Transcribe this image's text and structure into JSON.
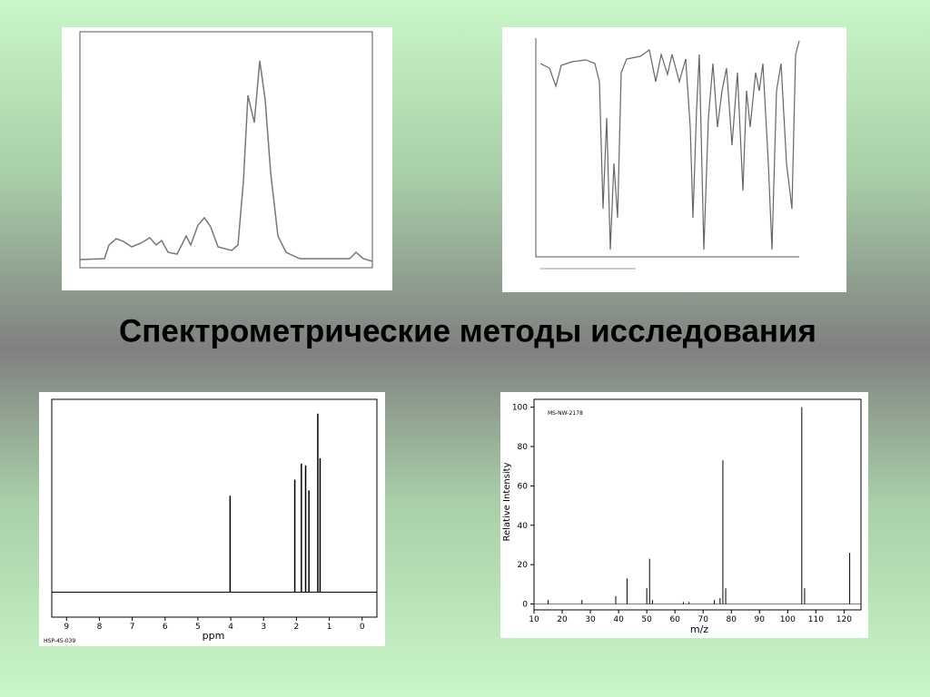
{
  "slide": {
    "title": "Спектрометрические методы исследования"
  },
  "nmr": {
    "code": "HSP-45-039",
    "xlabel": "ppm",
    "xlim": [
      9.45,
      -0.45
    ],
    "xticks": [
      9,
      8,
      7,
      6,
      5,
      4,
      3,
      2,
      1,
      0
    ],
    "ylim": [
      -14,
      108
    ],
    "peaks": [
      {
        "ppm": 4.02,
        "height": 54
      },
      {
        "ppm": 2.05,
        "height": 63
      },
      {
        "ppm": 1.85,
        "height": 72
      },
      {
        "ppm": 1.72,
        "height": 71
      },
      {
        "ppm": 1.62,
        "height": 57
      },
      {
        "ppm": 1.35,
        "height": 100
      },
      {
        "ppm": 1.28,
        "height": 75
      }
    ]
  },
  "ms": {
    "code": "MS-NW-2178",
    "xlabel": "m/z",
    "ylabel": "Relative Intensity",
    "xlim": [
      10,
      126
    ],
    "xticks": [
      10,
      20,
      30,
      40,
      50,
      60,
      70,
      80,
      90,
      100,
      110,
      120
    ],
    "ylim": [
      -3,
      104
    ],
    "yticks": [
      0,
      20,
      40,
      60,
      80,
      100
    ],
    "peaks": [
      {
        "mz": 15,
        "intensity": 2
      },
      {
        "mz": 27,
        "intensity": 2
      },
      {
        "mz": 39,
        "intensity": 4
      },
      {
        "mz": 43,
        "intensity": 13
      },
      {
        "mz": 50,
        "intensity": 8
      },
      {
        "mz": 51,
        "intensity": 23
      },
      {
        "mz": 52,
        "intensity": 2
      },
      {
        "mz": 63,
        "intensity": 1
      },
      {
        "mz": 65,
        "intensity": 1
      },
      {
        "mz": 74,
        "intensity": 2
      },
      {
        "mz": 76,
        "intensity": 3
      },
      {
        "mz": 77,
        "intensity": 73
      },
      {
        "mz": 78,
        "intensity": 8
      },
      {
        "mz": 105,
        "intensity": 100
      },
      {
        "mz": 106,
        "intensity": 8
      },
      {
        "mz": 122,
        "intensity": 26
      }
    ]
  }
}
